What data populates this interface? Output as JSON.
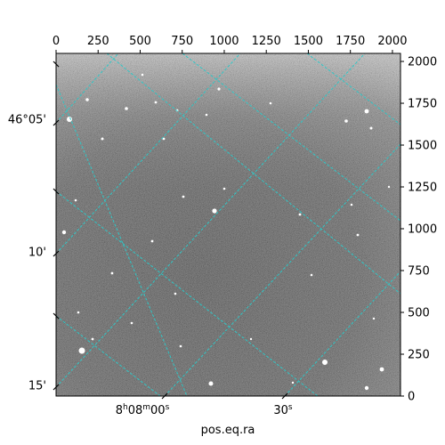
{
  "figure": {
    "xlabel": "pos.eq.ra",
    "colors": {
      "grid": "#2ec7c7",
      "frame": "#000000",
      "background": "#ffffff"
    }
  },
  "pixel_axes": {
    "x": {
      "range": [
        0,
        2048
      ],
      "ticks": [
        "0",
        "250",
        "500",
        "750",
        "1000",
        "1250",
        "1500",
        "1750",
        "2000"
      ],
      "tick_values": [
        0,
        250,
        500,
        750,
        1000,
        1250,
        1500,
        1750,
        2000
      ]
    },
    "y": {
      "range": [
        0,
        2048
      ],
      "ticks": [
        "0",
        "250",
        "500",
        "750",
        "1000",
        "1250",
        "1500",
        "1750",
        "2000"
      ],
      "tick_values": [
        0,
        250,
        500,
        750,
        1000,
        1250,
        1500,
        1750,
        2000
      ]
    }
  },
  "world_axes": {
    "ra_labels": [
      {
        "h": "8",
        "m": "08",
        "s": "00",
        "full": true
      },
      {
        "s": "30",
        "full": false
      }
    ],
    "dec_labels": [
      "46°05'",
      "10'",
      "15'"
    ]
  },
  "chart_data": {
    "type": "heatmap",
    "title": "",
    "xlabel": "pos.eq.ra",
    "ylabel": "",
    "xlim": [
      0,
      2048
    ],
    "ylim": [
      0,
      2048
    ],
    "grid": true,
    "legend": "none"
  }
}
